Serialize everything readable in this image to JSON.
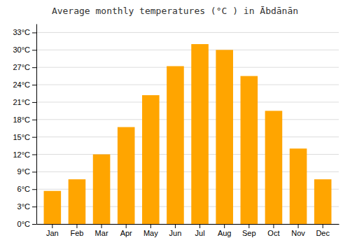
{
  "chart_data": {
    "type": "bar",
    "title": "Average monthly temperatures (°C ) in Ābdānān",
    "categories": [
      "Jan",
      "Feb",
      "Mar",
      "Apr",
      "May",
      "Jun",
      "Jul",
      "Aug",
      "Sep",
      "Oct",
      "Nov",
      "Dec"
    ],
    "values": [
      5.7,
      7.7,
      12.0,
      16.7,
      22.2,
      27.2,
      31.0,
      30.0,
      25.5,
      19.5,
      13.0,
      7.7
    ],
    "color": "#FFA500",
    "ylim": [
      0,
      34.5
    ],
    "yticks": [
      {
        "value": 0,
        "label": "0°C"
      },
      {
        "value": 3,
        "label": "3°C"
      },
      {
        "value": 6,
        "label": "6°C"
      },
      {
        "value": 9,
        "label": "9°C"
      },
      {
        "value": 12,
        "label": "12°C"
      },
      {
        "value": 15,
        "label": "15°C"
      },
      {
        "value": 18,
        "label": "18°C"
      },
      {
        "value": 21,
        "label": "21°C"
      },
      {
        "value": 24,
        "label": "24°C"
      },
      {
        "value": 27,
        "label": "27°C"
      },
      {
        "value": 30,
        "label": "30°C"
      },
      {
        "value": 33,
        "label": "33°C"
      }
    ],
    "grid": true
  }
}
